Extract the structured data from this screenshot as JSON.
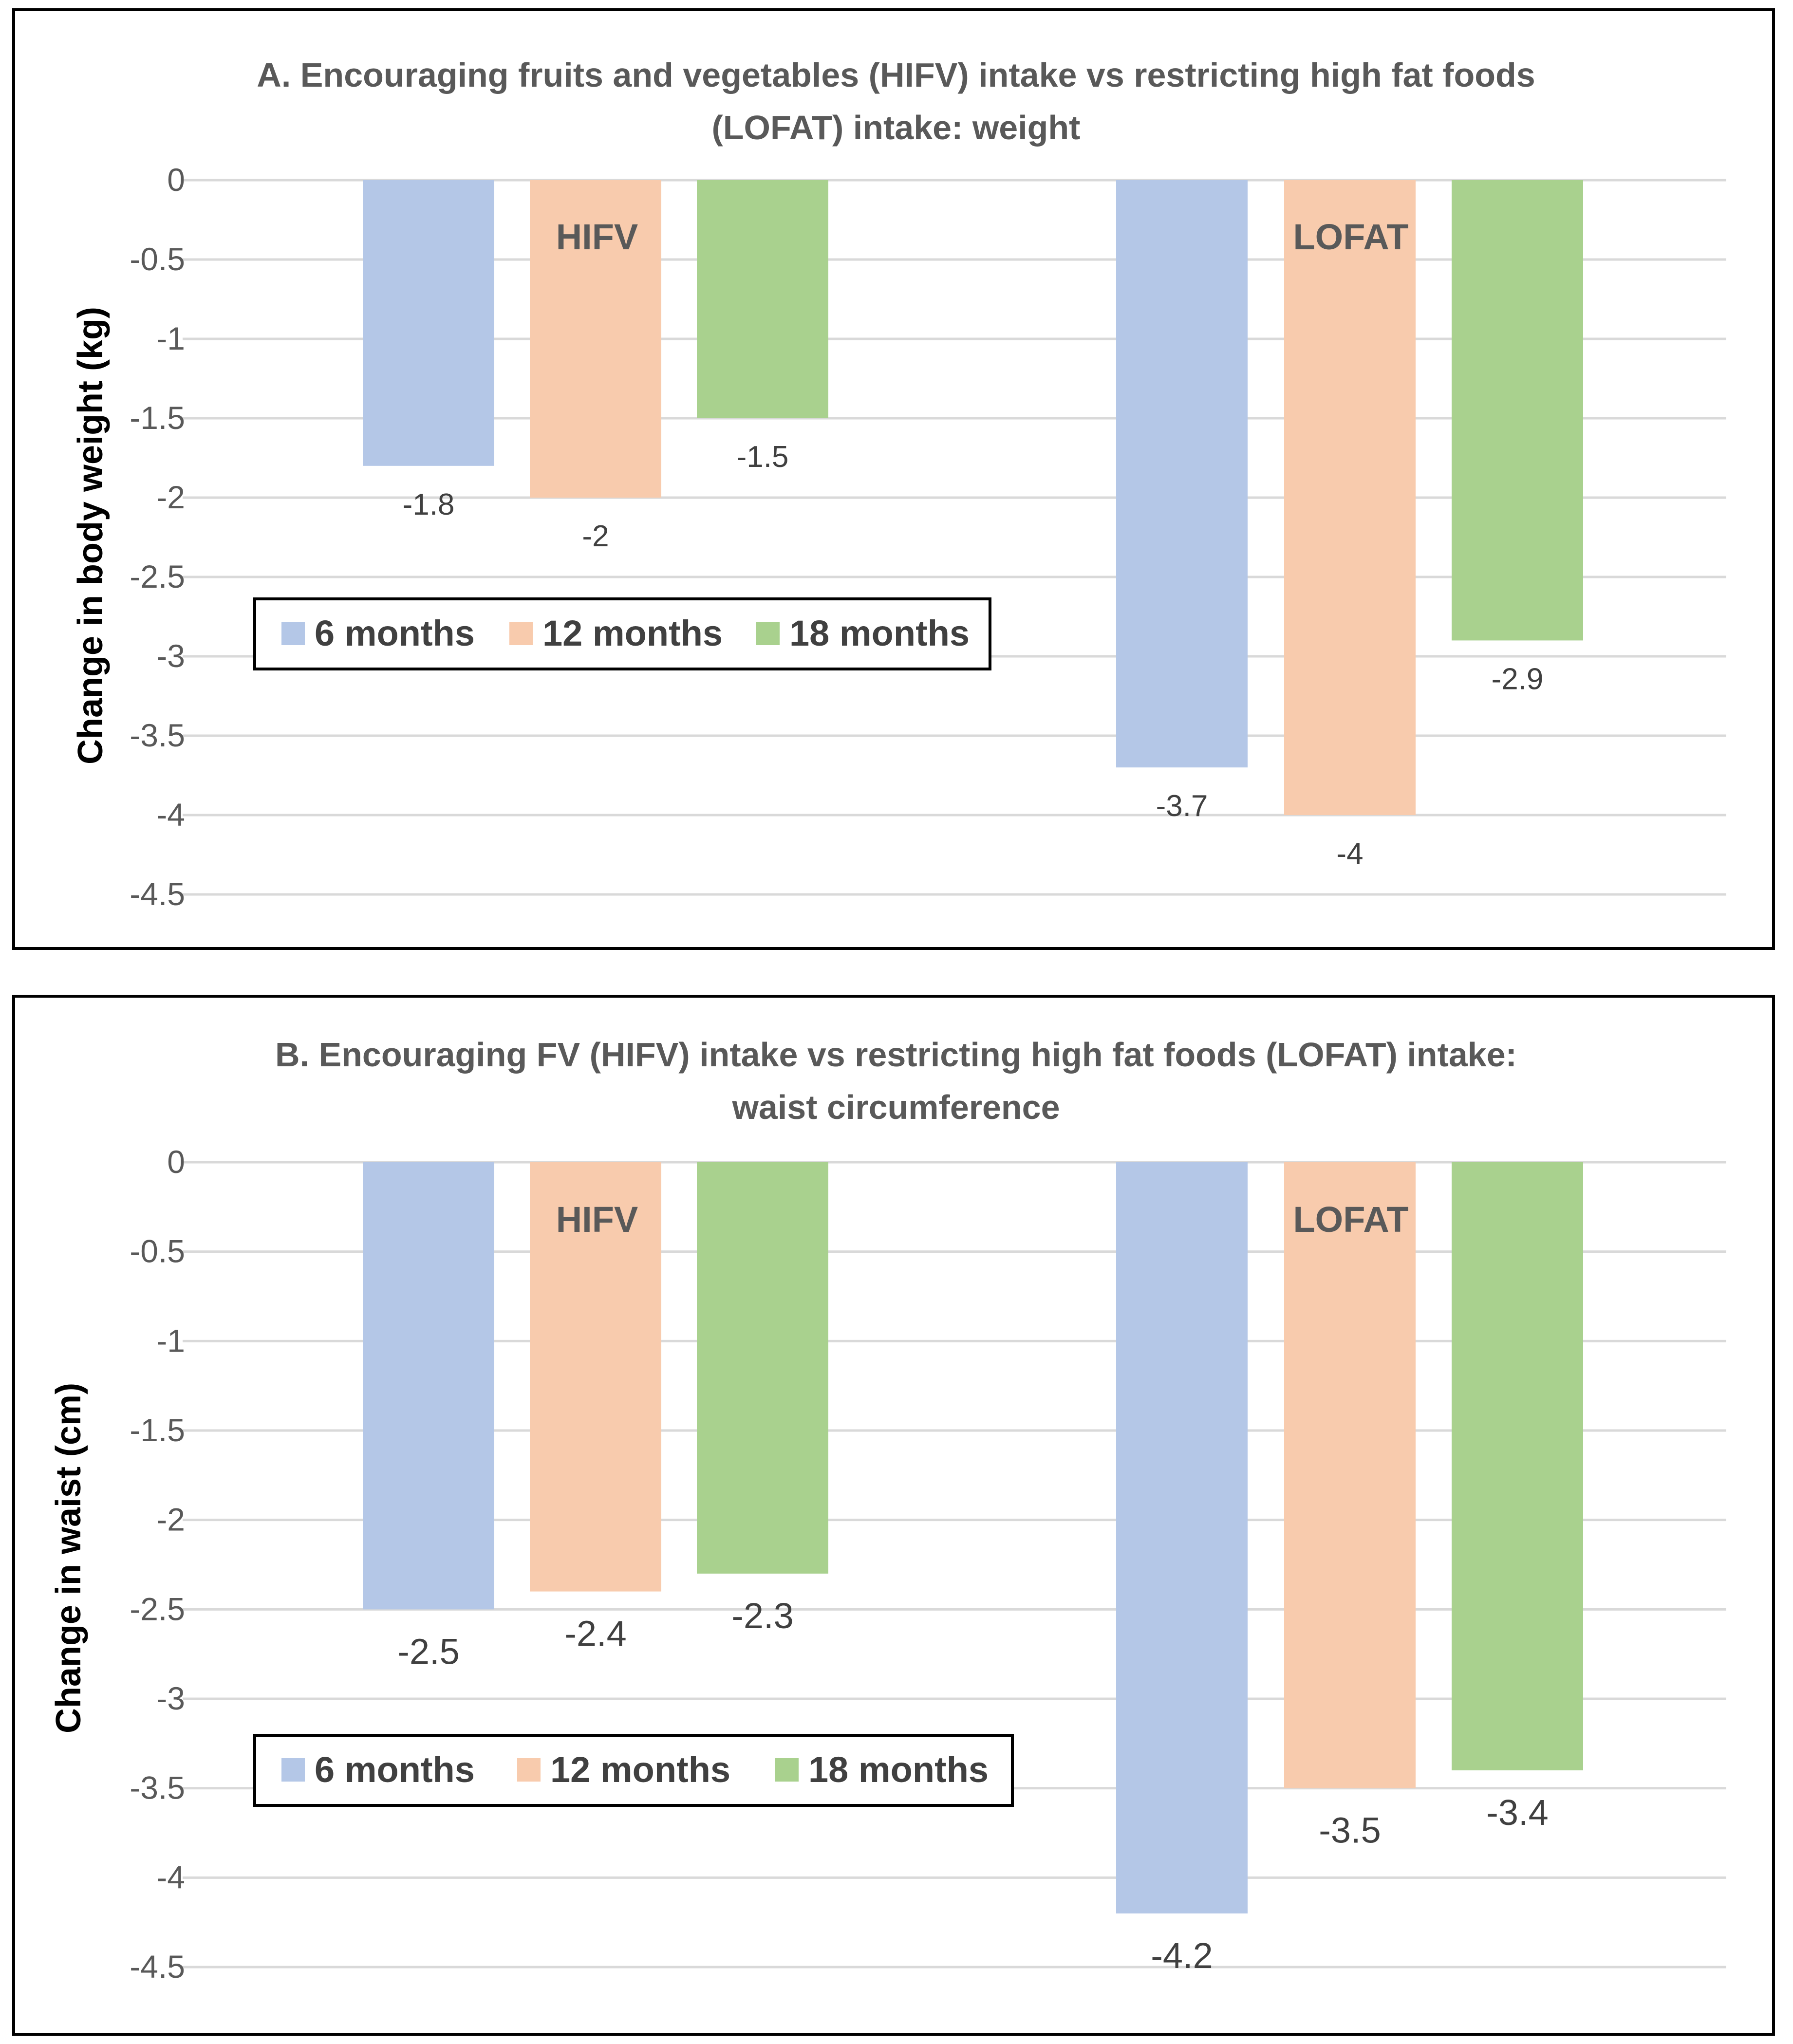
{
  "chart_data": [
    {
      "type": "bar",
      "title": "A. Encouraging fruits and vegetables (HIFV) intake vs restricting high fat foods (LOFAT) intake: weight",
      "title_lines": [
        "A. Encouraging fruits and vegetables (HIFV) intake vs restricting high fat foods",
        "(LOFAT) intake: weight"
      ],
      "xlabel": "",
      "ylabel": "Change in body weight (kg)",
      "ylim": [
        -4.5,
        0
      ],
      "yticks": [
        0,
        -0.5,
        -1,
        -1.5,
        -2,
        -2.5,
        -3,
        -3.5,
        -4,
        -4.5
      ],
      "ytick_labels": [
        "0",
        "-0.5",
        "-1",
        "-1.5",
        "-2",
        "-2.5",
        "-3",
        "-3.5",
        "-4",
        "-4.5"
      ],
      "grid": true,
      "legend_position": "middle-left",
      "categories": [
        "HIFV",
        "LOFAT"
      ],
      "series": [
        {
          "name": "6 months",
          "color": "#b4c7e7",
          "values": [
            -1.8,
            -3.7
          ],
          "labels": [
            "-1.8",
            "-3.7"
          ]
        },
        {
          "name": "12 months",
          "color": "#f8cbad",
          "values": [
            -2,
            -4
          ],
          "labels": [
            "-2",
            "-4"
          ]
        },
        {
          "name": "18 months",
          "color": "#a9d18e",
          "values": [
            -1.5,
            -2.9
          ],
          "labels": [
            "-1.5",
            "-2.9"
          ]
        }
      ]
    },
    {
      "type": "bar",
      "title": "B. Encouraging FV (HIFV) intake vs restricting high fat foods (LOFAT) intake: waist circumference",
      "title_lines": [
        "B. Encouraging FV (HIFV) intake vs restricting high fat foods (LOFAT) intake:",
        "waist circumference"
      ],
      "xlabel": "",
      "ylabel": "Change in waist (cm)",
      "ylim": [
        -4.5,
        0
      ],
      "yticks": [
        0,
        -0.5,
        -1,
        -1.5,
        -2,
        -2.5,
        -3,
        -3.5,
        -4,
        -4.5
      ],
      "ytick_labels": [
        "0",
        "-0.5",
        "-1",
        "-1.5",
        "-2",
        "-2.5",
        "-3",
        "-3.5",
        "-4",
        "-4.5"
      ],
      "grid": true,
      "legend_position": "lower-left",
      "categories": [
        "HIFV",
        "LOFAT"
      ],
      "series": [
        {
          "name": "6 months",
          "color": "#b4c7e7",
          "values": [
            -2.5,
            -4.2
          ],
          "labels": [
            "-2.5",
            "-4.2"
          ]
        },
        {
          "name": "12 months",
          "color": "#f8cbad",
          "values": [
            -2.4,
            -3.5
          ],
          "labels": [
            "-2.4",
            "-3.5"
          ]
        },
        {
          "name": "18 months",
          "color": "#a9d18e",
          "values": [
            -2.3,
            -3.4
          ],
          "labels": [
            "-2.3",
            "-3.4"
          ]
        }
      ]
    }
  ]
}
